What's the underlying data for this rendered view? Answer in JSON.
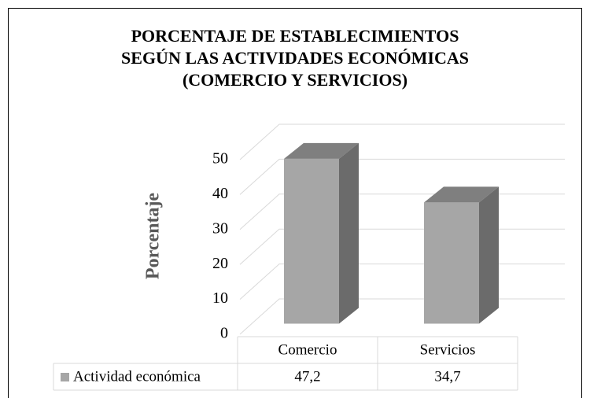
{
  "chart_data": {
    "type": "bar3d",
    "title": [
      "PORCENTAJE DE ESTABLECIMIENTOS",
      "SEGÚN LAS ACTIVIDADES ECONÓMICAS",
      "(COMERCIO Y SERVICIOS)"
    ],
    "y_label": "Porcentaje",
    "categories": [
      "Comercio",
      "Servicios"
    ],
    "series": [
      {
        "name": "Actividad económica",
        "color": "#a6a6a6",
        "values": [
          47.2,
          34.7
        ],
        "value_labels": [
          "47,2",
          "34,7"
        ]
      }
    ],
    "ylim": [
      0,
      50
    ],
    "yticks": [
      0,
      10,
      20,
      30,
      40,
      50
    ],
    "grid": true,
    "data_table": true
  }
}
